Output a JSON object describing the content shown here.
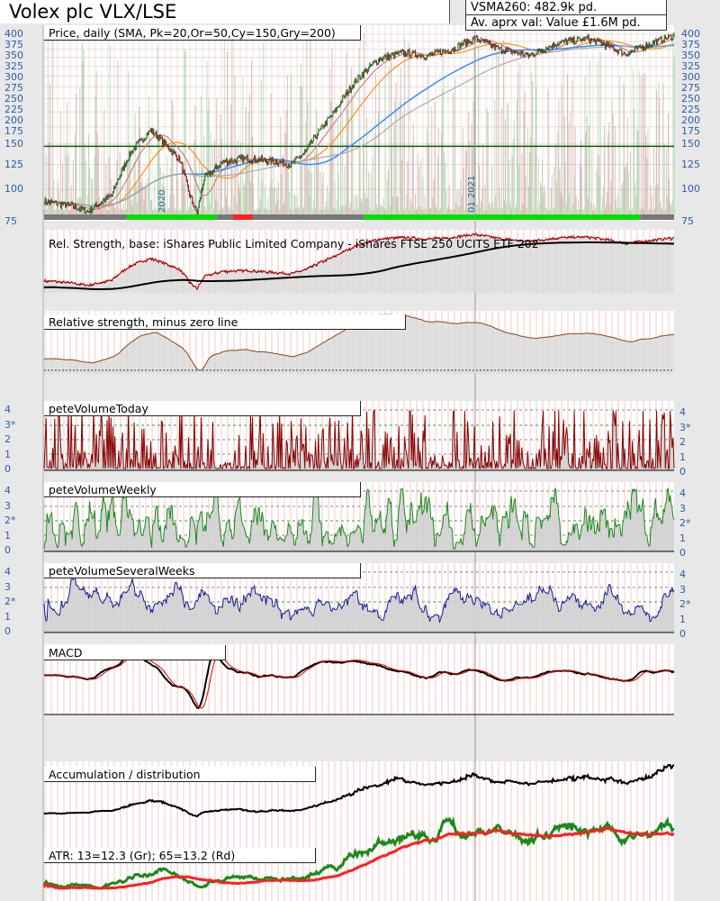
{
  "header": {
    "title": "Volex plc VLX/LSE",
    "vsma": "VSMA260: 482.9k pd.",
    "avg_value": "Av. aprx val: Value £1.6M pd."
  },
  "panels": {
    "price": "Price, daily (SMA, Pk=20,Or=50,Cy=150,Gry=200)",
    "rs": "Rel. Strength, base: iShares Public Limited Company - iShares FTSE 250 UCITS ETF 202",
    "rs_zero": "Relative strength, minus zero line",
    "vol_today": "peteVolumeToday",
    "vol_weekly": "peteVolumeWeekly",
    "vol_several": "peteVolumeSeveralWeeks",
    "macd": "MACD",
    "accum": "Accumulation / distribution",
    "atr": "ATR: 13=12.3 (Gr); 65=13.2 (Rd)"
  },
  "date_labels": [
    "2020",
    "01 2021"
  ],
  "chart_data": {
    "type": "line",
    "price_axis": {
      "scale": "log",
      "ylim": [
        75,
        400
      ],
      "ticks": [
        "400",
        "375",
        "350",
        "325",
        "300",
        "275",
        "250",
        "225",
        "200",
        "175",
        "150",
        "125",
        "100",
        "75"
      ]
    },
    "volume_axis_today": [
      "4",
      "3*",
      "2",
      "1",
      "0"
    ],
    "volume_axis_weekly": [
      "4",
      "3",
      "2*",
      "1",
      "0"
    ],
    "volume_axis_several": [
      "4",
      "3",
      "2*",
      "1",
      "0"
    ],
    "reference_line_price": 147,
    "price_anchors": [
      [
        0,
        90
      ],
      [
        30,
        86
      ],
      [
        45,
        82
      ],
      [
        70,
        95
      ],
      [
        90,
        140
      ],
      [
        110,
        170
      ],
      [
        125,
        150
      ],
      [
        140,
        130
      ],
      [
        150,
        95
      ],
      [
        158,
        80
      ],
      [
        165,
        110
      ],
      [
        185,
        128
      ],
      [
        210,
        132
      ],
      [
        240,
        128
      ],
      [
        255,
        125
      ],
      [
        270,
        140
      ],
      [
        300,
        200
      ],
      [
        320,
        260
      ],
      [
        345,
        320
      ],
      [
        370,
        340
      ],
      [
        395,
        330
      ],
      [
        420,
        350
      ],
      [
        445,
        385
      ],
      [
        470,
        350
      ],
      [
        500,
        330
      ],
      [
        530,
        370
      ],
      [
        560,
        385
      ],
      [
        575,
        370
      ],
      [
        600,
        335
      ],
      [
        620,
        360
      ],
      [
        640,
        385
      ],
      [
        650,
        395
      ]
    ],
    "status_bar": [
      {
        "from": 0,
        "to": 85,
        "state": "neutral"
      },
      {
        "from": 85,
        "to": 178,
        "state": "green"
      },
      {
        "from": 178,
        "to": 195,
        "state": "neutral"
      },
      {
        "from": 195,
        "to": 215,
        "state": "red"
      },
      {
        "from": 215,
        "to": 330,
        "state": "neutral"
      },
      {
        "from": 330,
        "to": 615,
        "state": "green"
      },
      {
        "from": 615,
        "to": 650,
        "state": "neutral"
      }
    ],
    "colors": {
      "sma20": "#d08080",
      "sma50": "#ff8c1a",
      "sma150": "#2f8fff",
      "sma200": "#aaaaaa",
      "up": "#1a8a1a",
      "down": "#b01010",
      "vol_today": "#8b0000",
      "vol_weekly": "#1a8a1a",
      "vol_several": "#1a1a99"
    }
  }
}
